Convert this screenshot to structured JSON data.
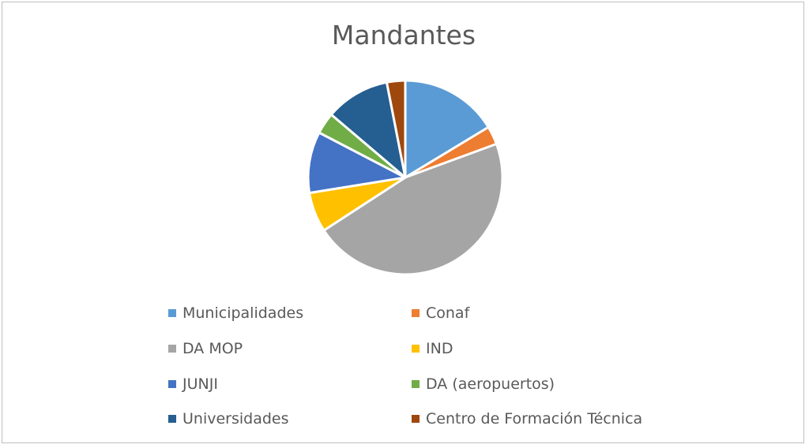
{
  "chart_data": {
    "type": "pie",
    "title": "Mandantes",
    "categories": [
      "Municipalidades",
      "Conaf",
      "DA MOP",
      "IND",
      "JUNJI",
      "DA (aeropuertos)",
      "Universidades",
      "Centro de Formación Técnica"
    ],
    "values": [
      16,
      3,
      45.5,
      6.5,
      10,
      3.5,
      10.5,
      3
    ],
    "colors": [
      "#5b9bd5",
      "#ed7d31",
      "#a5a5a5",
      "#ffc000",
      "#4472c4",
      "#70ad47",
      "#255e91",
      "#9e480e"
    ],
    "legend_position": "bottom"
  }
}
